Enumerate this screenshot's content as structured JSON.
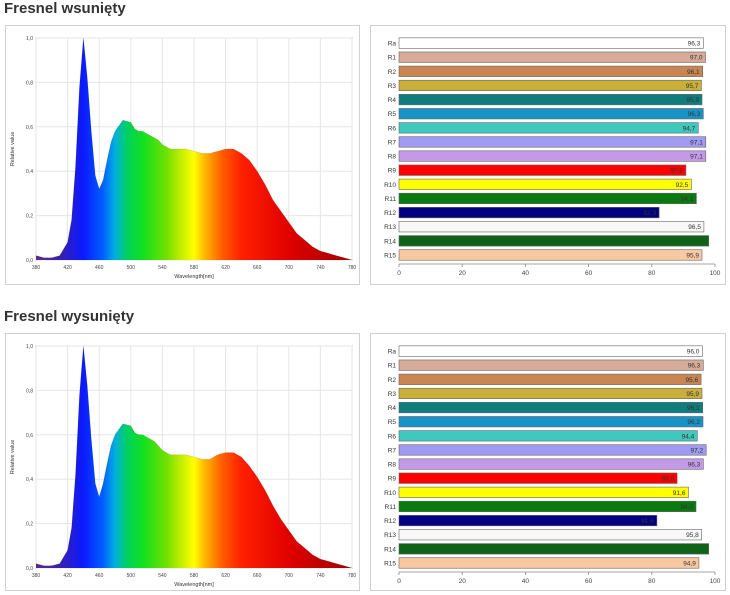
{
  "sections": [
    {
      "title": "Fresnel wsunięty"
    },
    {
      "title": "Fresnel wysunięty"
    }
  ],
  "chart_data": [
    {
      "type": "area",
      "title": "",
      "xlabel": "Wavelength[nm]",
      "ylabel": "Relative value",
      "xlim": [
        380,
        780
      ],
      "ylim": [
        0,
        1.0
      ],
      "xticks": [
        "380",
        "420",
        "460",
        "500",
        "540",
        "580",
        "620",
        "660",
        "700",
        "740",
        "780"
      ],
      "yticks": [
        "0,0",
        "0,2",
        "0,4",
        "0,6",
        "0,8",
        "1,0"
      ],
      "grid": true,
      "fill": "visible-spectrum gradient",
      "x": [
        380,
        390,
        400,
        410,
        420,
        425,
        430,
        435,
        440,
        445,
        450,
        455,
        460,
        465,
        470,
        475,
        480,
        490,
        500,
        505,
        510,
        515,
        520,
        525,
        530,
        535,
        540,
        545,
        550,
        555,
        560,
        570,
        580,
        590,
        600,
        610,
        620,
        630,
        640,
        650,
        660,
        670,
        680,
        690,
        700,
        710,
        720,
        730,
        740,
        750,
        760,
        770,
        780
      ],
      "y": [
        0.02,
        0.01,
        0.01,
        0.02,
        0.08,
        0.18,
        0.42,
        0.78,
        1.0,
        0.82,
        0.58,
        0.38,
        0.32,
        0.36,
        0.45,
        0.53,
        0.58,
        0.63,
        0.62,
        0.59,
        0.58,
        0.58,
        0.57,
        0.56,
        0.55,
        0.54,
        0.52,
        0.51,
        0.5,
        0.5,
        0.5,
        0.5,
        0.49,
        0.48,
        0.48,
        0.49,
        0.5,
        0.5,
        0.48,
        0.45,
        0.4,
        0.34,
        0.27,
        0.22,
        0.17,
        0.12,
        0.09,
        0.06,
        0.04,
        0.03,
        0.02,
        0.01,
        0.0
      ]
    },
    {
      "type": "bar",
      "orientation": "horizontal",
      "title": "",
      "xlim": [
        0,
        100
      ],
      "xticks": [
        "0",
        "20",
        "40",
        "60",
        "80",
        "100"
      ],
      "grid": false,
      "categories": [
        "Ra",
        "R1",
        "R2",
        "R3",
        "R4",
        "R5",
        "R6",
        "R7",
        "R8",
        "R9",
        "R10",
        "R11",
        "R12",
        "R13",
        "R14",
        "R15"
      ],
      "values": [
        96.3,
        97.0,
        96.1,
        95.7,
        95.9,
        96.3,
        94.7,
        97.1,
        97.1,
        90.8,
        92.5,
        94.1,
        82.3,
        96.5,
        98.0,
        95.9
      ],
      "labels": [
        "96,3",
        "97,0",
        "96,1",
        "95,7",
        "95,9",
        "96,3",
        "94,7",
        "97,1",
        "97,1",
        "90,8",
        "92,5",
        "94,1",
        "82,3",
        "96,5",
        "",
        "95,9"
      ],
      "colors": [
        "#ffffff",
        "#d8ab98",
        "#c98552",
        "#c8b03a",
        "#0f7c7e",
        "#1893c8",
        "#3fc8be",
        "#a09af0",
        "#c49ae8",
        "#ff0000",
        "#ffff00",
        "#0a7a10",
        "#000080",
        "#f8f8f8",
        "#0f6318",
        "#f8c8a0"
      ]
    },
    {
      "type": "area",
      "title": "",
      "xlabel": "Wavelength[nm]",
      "ylabel": "Relative value",
      "xlim": [
        380,
        780
      ],
      "ylim": [
        0,
        1.0
      ],
      "xticks": [
        "380",
        "420",
        "460",
        "500",
        "540",
        "580",
        "620",
        "660",
        "700",
        "740",
        "780"
      ],
      "yticks": [
        "0,0",
        "0,2",
        "0,4",
        "0,6",
        "0,8",
        "1,0"
      ],
      "grid": true,
      "fill": "visible-spectrum gradient",
      "x": [
        380,
        390,
        400,
        410,
        420,
        425,
        430,
        435,
        440,
        445,
        450,
        455,
        460,
        465,
        470,
        475,
        480,
        490,
        500,
        505,
        510,
        515,
        520,
        525,
        530,
        535,
        540,
        545,
        550,
        555,
        560,
        570,
        580,
        590,
        600,
        610,
        620,
        630,
        640,
        650,
        660,
        670,
        680,
        690,
        700,
        710,
        720,
        730,
        740,
        750,
        760,
        770,
        780
      ],
      "y": [
        0.02,
        0.01,
        0.01,
        0.02,
        0.08,
        0.18,
        0.42,
        0.78,
        1.0,
        0.82,
        0.58,
        0.38,
        0.32,
        0.38,
        0.47,
        0.55,
        0.6,
        0.65,
        0.64,
        0.61,
        0.6,
        0.6,
        0.59,
        0.58,
        0.57,
        0.55,
        0.53,
        0.52,
        0.51,
        0.51,
        0.51,
        0.51,
        0.5,
        0.49,
        0.49,
        0.51,
        0.52,
        0.52,
        0.5,
        0.46,
        0.41,
        0.35,
        0.28,
        0.22,
        0.17,
        0.12,
        0.09,
        0.06,
        0.04,
        0.03,
        0.02,
        0.01,
        0.0
      ]
    },
    {
      "type": "bar",
      "orientation": "horizontal",
      "title": "",
      "xlim": [
        0,
        100
      ],
      "xticks": [
        "0",
        "20",
        "40",
        "60",
        "80",
        "100"
      ],
      "grid": false,
      "categories": [
        "Ra",
        "R1",
        "R2",
        "R3",
        "R4",
        "R5",
        "R6",
        "R7",
        "R8",
        "R9",
        "R10",
        "R11",
        "R12",
        "R13",
        "R14",
        "R15"
      ],
      "values": [
        96.0,
        96.3,
        95.6,
        95.9,
        96.1,
        96.2,
        94.4,
        97.2,
        96.3,
        88.0,
        91.6,
        94.0,
        81.6,
        95.8,
        98.0,
        94.9
      ],
      "labels": [
        "96,0",
        "96,3",
        "95,6",
        "95,9",
        "96,1",
        "96,2",
        "94,4",
        "97,2",
        "96,3",
        "88,0",
        "91,6",
        "94,0",
        "81,6",
        "95,8",
        "",
        "94,9"
      ],
      "colors": [
        "#ffffff",
        "#d8ab98",
        "#c98552",
        "#c8b03a",
        "#0f7c7e",
        "#1893c8",
        "#3fc8be",
        "#a09af0",
        "#c49ae8",
        "#ff0000",
        "#ffff00",
        "#0a7a10",
        "#000080",
        "#f8f8f8",
        "#0f6318",
        "#f8c8a0"
      ]
    }
  ]
}
